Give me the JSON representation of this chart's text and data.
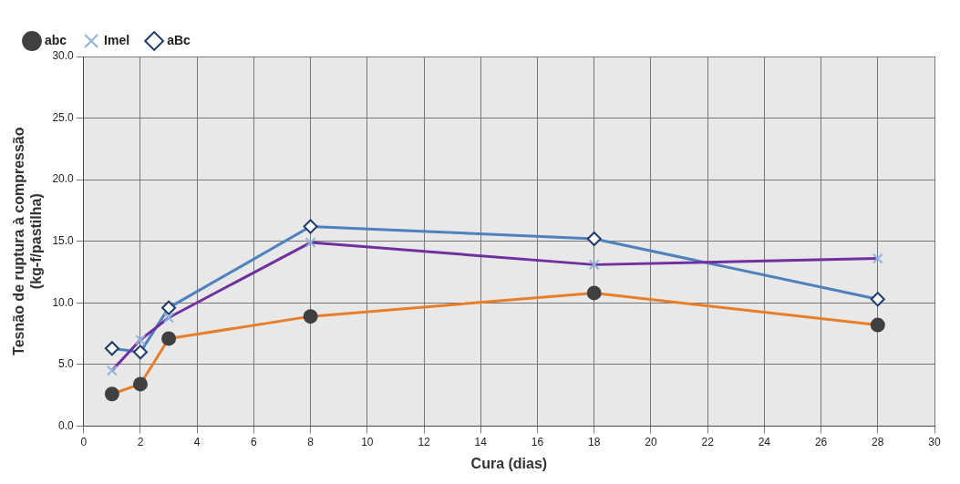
{
  "chart_data": {
    "type": "line",
    "xlabel": "Cura (dias)",
    "ylabel": "Tesnão de ruptura à compressão\n(kg-f/pastilha)",
    "x": [
      1,
      2,
      3,
      8,
      18,
      28
    ],
    "series": [
      {
        "name": "abc",
        "color": "#e87d2a",
        "marker": "circle",
        "values": [
          2.6,
          3.4,
          7.1,
          8.9,
          10.8,
          8.2
        ]
      },
      {
        "name": "Imel",
        "color": "#7030a0",
        "marker": "cross",
        "values": [
          4.5,
          7.0,
          8.8,
          14.9,
          13.1,
          13.6
        ]
      },
      {
        "name": "aBc",
        "color": "#4f81bd",
        "marker": "diamond",
        "values": [
          6.3,
          6.0,
          9.6,
          16.2,
          15.2,
          10.3
        ]
      }
    ],
    "xlim": [
      0,
      30
    ],
    "xticks": [
      0,
      2,
      4,
      6,
      8,
      10,
      12,
      14,
      16,
      18,
      20,
      22,
      24,
      26,
      28,
      30
    ],
    "ylim": [
      0,
      30
    ],
    "yticks": [
      {
        "value": 0,
        "label": "0.0"
      },
      {
        "value": 5,
        "label": "5.0"
      },
      {
        "value": 10,
        "label": "10.0"
      },
      {
        "value": 15,
        "label": "15.0"
      },
      {
        "value": 20,
        "label": "20.0"
      },
      {
        "value": 25,
        "label": "25.0"
      },
      {
        "value": 30,
        "label": "30.0"
      }
    ],
    "grid": true,
    "legend": "top left",
    "line_style": "solid"
  }
}
